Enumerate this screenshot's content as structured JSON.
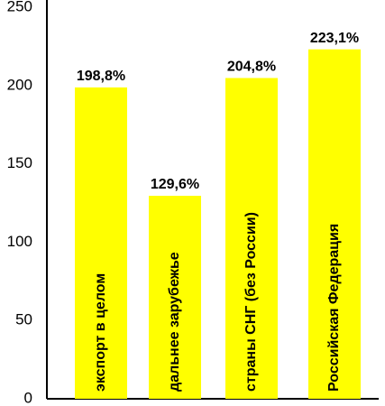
{
  "chart_data": {
    "type": "bar",
    "categories": [
      "экспорт в целом",
      "дальнее зарубежье",
      "страны СНГ (без России)",
      "Российская Федерация"
    ],
    "values": [
      198.8,
      129.6,
      204.8,
      223.1
    ],
    "value_labels": [
      "198,8%",
      "129,6%",
      "204,8%",
      "223,1%"
    ],
    "color": "#ffff00",
    "ylim": [
      0,
      250
    ],
    "yticks": [
      0,
      50,
      100,
      150,
      200,
      250
    ],
    "grid": false
  }
}
